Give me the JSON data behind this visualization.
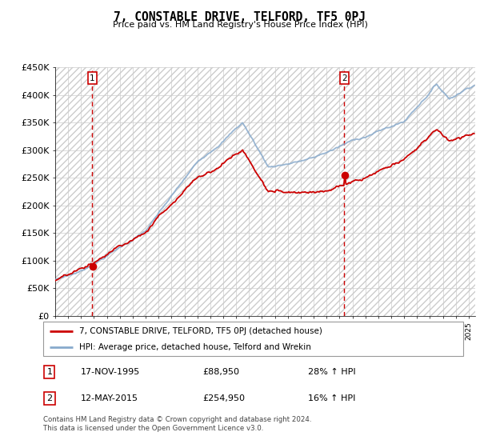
{
  "title": "7, CONSTABLE DRIVE, TELFORD, TF5 0PJ",
  "subtitle": "Price paid vs. HM Land Registry's House Price Index (HPI)",
  "ylim": [
    0,
    450000
  ],
  "yticks": [
    0,
    50000,
    100000,
    150000,
    200000,
    250000,
    300000,
    350000,
    400000,
    450000
  ],
  "ytick_labels": [
    "£0",
    "£50K",
    "£100K",
    "£150K",
    "£200K",
    "£250K",
    "£300K",
    "£350K",
    "£400K",
    "£450K"
  ],
  "line1_color": "#cc0000",
  "line2_color": "#88aacc",
  "vline_color": "#cc0000",
  "purchase1_year": 1995.875,
  "purchase1_price": 88950,
  "purchase1_label": "17-NOV-1995",
  "purchase1_amount": "£88,950",
  "purchase1_hpi": "28% ↑ HPI",
  "purchase2_year": 2015.375,
  "purchase2_price": 254950,
  "purchase2_label": "12-MAY-2015",
  "purchase2_amount": "£254,950",
  "purchase2_hpi": "16% ↑ HPI",
  "legend1_label": "7, CONSTABLE DRIVE, TELFORD, TF5 0PJ (detached house)",
  "legend2_label": "HPI: Average price, detached house, Telford and Wrekin",
  "footnote": "Contains HM Land Registry data © Crown copyright and database right 2024.\nThis data is licensed under the Open Government Licence v3.0.",
  "background_color": "#ffffff"
}
